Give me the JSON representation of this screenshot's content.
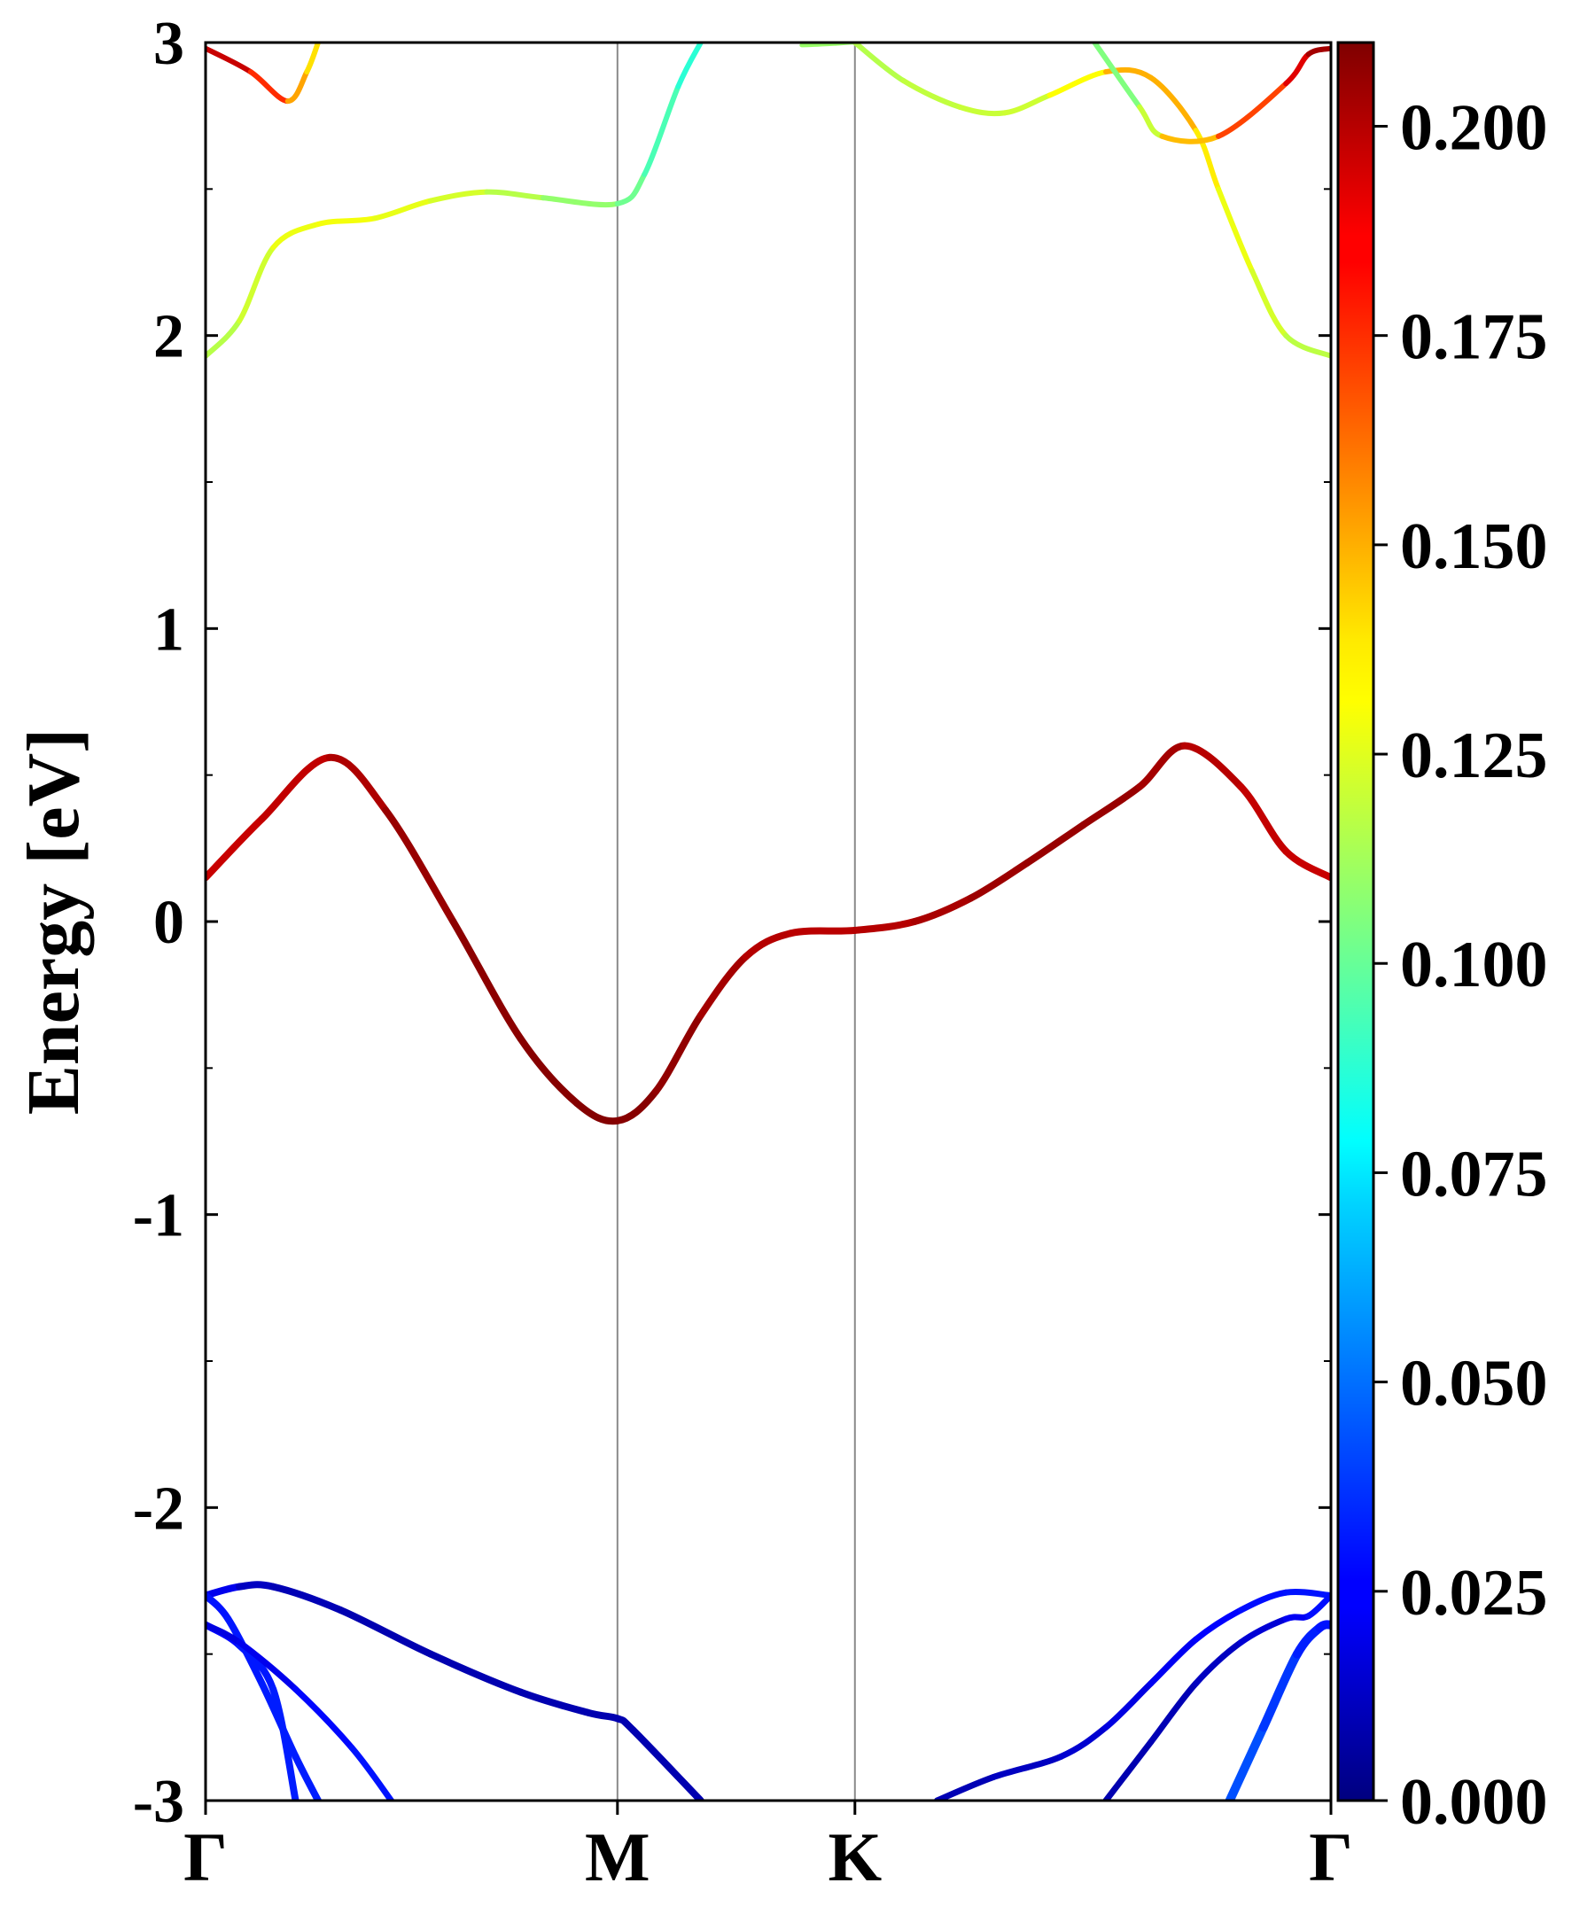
{
  "chart_data": {
    "type": "line",
    "title": "",
    "ylabel": "Energy [eV]",
    "xlabel": "",
    "ylim": [
      -3,
      3
    ],
    "yticks": [
      -3,
      -2,
      -1,
      0,
      1,
      2,
      3
    ],
    "ytick_labels": [
      "-3",
      "-2",
      "-1",
      "0",
      "1",
      "2",
      "3"
    ],
    "grid": false,
    "xrange": [
      0,
      1
    ],
    "high_symmetry_points": [
      {
        "label": "Γ",
        "x": 0.0
      },
      {
        "label": "M",
        "x": 0.366
      },
      {
        "label": "K",
        "x": 0.577
      },
      {
        "label": "Γ",
        "x": 1.0
      }
    ],
    "colorbar": {
      "colormap": "jet",
      "min": 0.0,
      "max": 0.21,
      "ticks": [
        0.0,
        0.025,
        0.05,
        0.075,
        0.1,
        0.125,
        0.15,
        0.175,
        0.2
      ],
      "tick_labels": [
        "0.000",
        "0.025",
        "0.050",
        "0.075",
        "0.100",
        "0.125",
        "0.150",
        "0.175",
        "0.200"
      ]
    },
    "series": [
      {
        "points": [
          [
            0.0,
            0.15
          ],
          [
            0.05,
            0.35
          ],
          [
            0.11,
            0.56
          ],
          [
            0.16,
            0.38
          ],
          [
            0.22,
            0.0
          ],
          [
            0.28,
            -0.4
          ],
          [
            0.33,
            -0.62
          ],
          [
            0.366,
            -0.68
          ],
          [
            0.4,
            -0.58
          ],
          [
            0.44,
            -0.32
          ],
          [
            0.48,
            -0.12
          ],
          [
            0.52,
            -0.04
          ],
          [
            0.577,
            -0.03
          ],
          [
            0.63,
            -0.0
          ],
          [
            0.68,
            0.08
          ],
          [
            0.73,
            0.2
          ],
          [
            0.78,
            0.33
          ],
          [
            0.83,
            0.46
          ],
          [
            0.87,
            0.6
          ],
          [
            0.92,
            0.46
          ],
          [
            0.96,
            0.24
          ],
          [
            1.0,
            0.15
          ]
        ],
        "colors": [
          0.195,
          0.195,
          0.198,
          0.203,
          0.207,
          0.208,
          0.209,
          0.209,
          0.208,
          0.205,
          0.2,
          0.198,
          0.198,
          0.2,
          0.203,
          0.205,
          0.205,
          0.205,
          0.2,
          0.197,
          0.195,
          0.195
        ],
        "width": 8
      },
      {
        "points": [
          [
            0.0,
            1.93
          ],
          [
            0.03,
            2.05
          ],
          [
            0.06,
            2.3
          ],
          [
            0.1,
            2.38
          ],
          [
            0.15,
            2.4
          ],
          [
            0.2,
            2.46
          ],
          [
            0.25,
            2.49
          ],
          [
            0.3,
            2.47
          ],
          [
            0.366,
            2.45
          ],
          [
            0.39,
            2.55
          ],
          [
            0.42,
            2.85
          ],
          [
            0.44,
            3.0
          ]
        ],
        "colors": [
          0.115,
          0.118,
          0.125,
          0.13,
          0.128,
          0.125,
          0.12,
          0.113,
          0.105,
          0.098,
          0.09,
          0.085
        ],
        "width": 6
      },
      {
        "points": [
          [
            0.0,
            2.98
          ],
          [
            0.04,
            2.9
          ],
          [
            0.073,
            2.8
          ],
          [
            0.09,
            2.9
          ],
          [
            0.1,
            3.0
          ]
        ],
        "colors": [
          0.2,
          0.19,
          0.16,
          0.14,
          0.135
        ],
        "width": 6
      },
      {
        "points": [
          [
            0.54,
            3.0
          ],
          [
            0.53,
            2.99
          ],
          [
            0.56,
            2.995
          ],
          [
            0.577,
            3.0
          ]
        ],
        "colors": [
          0.11,
          0.11,
          0.11,
          0.11
        ],
        "width": 4
      },
      {
        "points": [
          [
            0.577,
            3.0
          ],
          [
            0.62,
            2.87
          ],
          [
            0.67,
            2.78
          ],
          [
            0.71,
            2.76
          ],
          [
            0.75,
            2.82
          ],
          [
            0.8,
            2.9
          ],
          [
            0.84,
            2.88
          ],
          [
            0.88,
            2.7
          ],
          [
            0.9,
            2.5
          ],
          [
            0.93,
            2.22
          ],
          [
            0.96,
            2.0
          ],
          [
            1.0,
            1.93
          ]
        ],
        "colors": [
          0.115,
          0.117,
          0.12,
          0.12,
          0.122,
          0.14,
          0.155,
          0.14,
          0.13,
          0.125,
          0.12,
          0.115
        ],
        "width": 6
      },
      {
        "points": [
          [
            0.79,
            3.0
          ],
          [
            0.83,
            2.78
          ],
          [
            0.85,
            2.68
          ],
          [
            0.9,
            2.68
          ],
          [
            0.96,
            2.86
          ],
          [
            0.98,
            2.96
          ],
          [
            1.0,
            2.98
          ]
        ],
        "colors": [
          0.1,
          0.11,
          0.13,
          0.16,
          0.18,
          0.2,
          0.205
        ],
        "width": 6
      },
      {
        "points": [
          [
            0.0,
            -2.3
          ],
          [
            0.03,
            -2.27
          ],
          [
            0.06,
            -2.27
          ],
          [
            0.12,
            -2.35
          ],
          [
            0.2,
            -2.5
          ],
          [
            0.28,
            -2.63
          ],
          [
            0.34,
            -2.7
          ],
          [
            0.366,
            -2.72
          ],
          [
            0.38,
            -2.76
          ],
          [
            0.44,
            -3.0
          ]
        ],
        "colors": [
          0.03,
          0.015,
          0.012,
          0.01,
          0.01,
          0.01,
          0.01,
          0.01,
          0.01,
          0.01
        ],
        "width": 8
      },
      {
        "points": [
          [
            0.0,
            -2.3
          ],
          [
            0.02,
            -2.38
          ],
          [
            0.05,
            -2.6
          ],
          [
            0.08,
            -2.85
          ],
          [
            0.1,
            -3.0
          ]
        ],
        "colors": [
          0.03,
          0.03,
          0.032,
          0.032,
          0.032
        ],
        "width": 8
      },
      {
        "points": [
          [
            0.0,
            -2.4
          ],
          [
            0.03,
            -2.47
          ],
          [
            0.06,
            -2.62
          ],
          [
            0.08,
            -3.0
          ]
        ],
        "colors": [
          0.025,
          0.03,
          0.032,
          0.032
        ],
        "width": 8
      },
      {
        "points": [
          [
            0.0,
            -2.4
          ],
          [
            0.03,
            -2.46
          ],
          [
            0.08,
            -2.62
          ],
          [
            0.13,
            -2.82
          ],
          [
            0.165,
            -3.0
          ]
        ],
        "colors": [
          0.02,
          0.02,
          0.025,
          0.03,
          0.03
        ],
        "width": 7
      },
      {
        "points": [
          [
            0.65,
            -3.0
          ],
          [
            0.7,
            -2.92
          ],
          [
            0.76,
            -2.85
          ],
          [
            0.8,
            -2.75
          ],
          [
            0.84,
            -2.6
          ],
          [
            0.88,
            -2.45
          ],
          [
            0.92,
            -2.35
          ],
          [
            0.96,
            -2.29
          ],
          [
            1.0,
            -2.3
          ]
        ],
        "colors": [
          0.01,
          0.012,
          0.015,
          0.018,
          0.022,
          0.025,
          0.028,
          0.03,
          0.03
        ],
        "width": 7
      },
      {
        "points": [
          [
            0.8,
            -3.0
          ],
          [
            0.84,
            -2.8
          ],
          [
            0.88,
            -2.6
          ],
          [
            0.92,
            -2.46
          ],
          [
            0.96,
            -2.38
          ],
          [
            0.98,
            -2.37
          ],
          [
            1.0,
            -2.3
          ]
        ],
        "colors": [
          0.01,
          0.01,
          0.012,
          0.015,
          0.02,
          0.028,
          0.03
        ],
        "width": 7
      },
      {
        "points": [
          [
            0.91,
            -3.0
          ],
          [
            0.94,
            -2.75
          ],
          [
            0.97,
            -2.5
          ],
          [
            0.99,
            -2.41
          ],
          [
            1.0,
            -2.4
          ]
        ],
        "colors": [
          0.045,
          0.04,
          0.035,
          0.03,
          0.03
        ],
        "width": 10
      }
    ]
  }
}
